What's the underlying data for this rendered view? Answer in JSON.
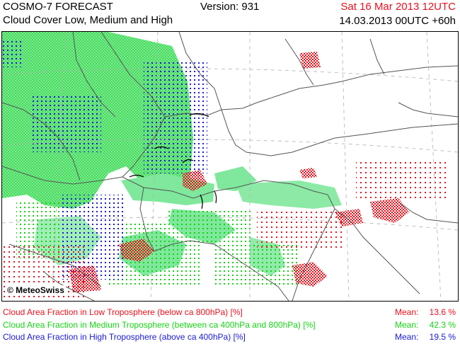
{
  "header": {
    "title_line1": "COSMO-7 FORECAST",
    "title_line2": "Cloud Cover Low, Medium and High",
    "version": "Version: 931",
    "valid_date": "Sat 16 Mar 2013 12UTC",
    "run_info": "14.03.2013 00UTC +60h"
  },
  "map": {
    "credit": "© MeteoSwiss",
    "colors": {
      "low": "#e8111c",
      "medium": "#14d314",
      "medium_fill": "#7fe89c",
      "high": "#1a1ad8",
      "border": "#000000",
      "gridline": "#b0b0b0"
    }
  },
  "legend": [
    {
      "label": "Cloud Area Fraction in Low Troposphere (below ca 800hPa) [%]",
      "mean_label": "Mean:",
      "mean_value": "13.6 %",
      "color": "#e8111c"
    },
    {
      "label": "Cloud Area Fraction in Medium Troposphere (between ca 400hPa and 800hPa) [%]",
      "mean_label": "Mean:",
      "mean_value": "42.3 %",
      "color": "#14d314"
    },
    {
      "label": "Cloud Area Fraction in High Troposphere (above ca 400hPa) [%]",
      "mean_label": "Mean:",
      "mean_value": "19.5 %",
      "color": "#1a1ad8"
    }
  ]
}
